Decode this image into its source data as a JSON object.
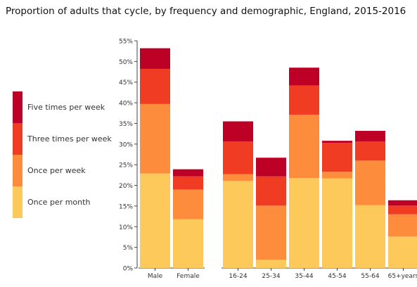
{
  "chart_data": {
    "type": "bar",
    "stacked": true,
    "title": "Proportion of adults that cycle, by frequency and demographic, England, 2015-2016",
    "xlabel": "",
    "ylabel": "",
    "ylim": [
      0,
      55
    ],
    "yticks": [
      "0%",
      "5%",
      "10%",
      "15%",
      "20%",
      "25%",
      "30%",
      "35%",
      "40%",
      "45%",
      "50%",
      "55%"
    ],
    "ytick_values": [
      0,
      5,
      10,
      15,
      20,
      25,
      30,
      35,
      40,
      45,
      50,
      55
    ],
    "categories": [
      "Male",
      "Female",
      "16-24",
      "25-34",
      "35-44",
      "45-54",
      "55-64",
      "65+years"
    ],
    "groups": [
      [
        "Male",
        "Female"
      ],
      [
        "16-24",
        "25-34",
        "35-44",
        "45-54",
        "55-64",
        "65+years"
      ]
    ],
    "grid": false,
    "legend_position": "left",
    "series": [
      {
        "name": "Once per month",
        "color": "#fdc95a",
        "values": [
          22.9,
          11.8,
          21.1,
          2.0,
          21.8,
          21.7,
          15.2,
          7.6
        ]
      },
      {
        "name": "Once per week",
        "color": "#fd8c3c",
        "values": [
          16.8,
          7.2,
          1.6,
          13.1,
          15.3,
          1.6,
          10.8,
          5.4
        ]
      },
      {
        "name": "Three times per week",
        "color": "#f03c23",
        "values": [
          8.5,
          3.2,
          7.9,
          7.1,
          7.1,
          7.0,
          4.6,
          2.1
        ]
      },
      {
        "name": "Five times per week",
        "color": "#bd0025",
        "values": [
          5.0,
          1.7,
          4.9,
          4.5,
          4.3,
          0.5,
          2.6,
          1.3
        ]
      }
    ]
  }
}
